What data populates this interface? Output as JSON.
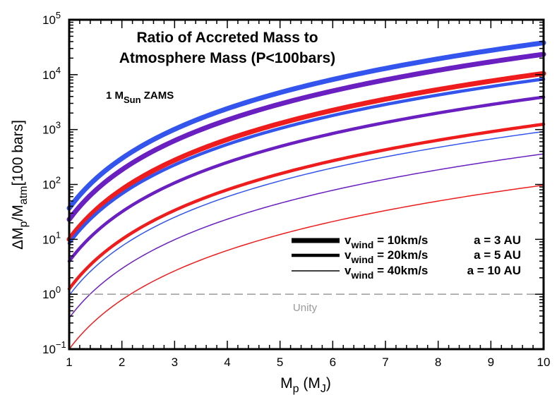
{
  "chart_data": {
    "type": "line",
    "title_line1": "Ratio of Accreted Mass to",
    "title_line2": "Atmosphere Mass (P<100bars)",
    "note": {
      "main": "1 M",
      "sub": "Sun",
      "tail": " ZAMS"
    },
    "xlabel": {
      "main": "M",
      "sub": "p",
      "mid": " (M",
      "sub2": "J",
      "tail": ")"
    },
    "ylabel": {
      "delta": "ΔM",
      "sub1": "p",
      "slash": "/M",
      "sub2": "atm",
      "tail": "[100 bars]"
    },
    "xlim": [
      1,
      10
    ],
    "ylim_log10": [
      -1,
      5
    ],
    "yscale": "log",
    "x_ticks": [
      "1",
      "2",
      "3",
      "4",
      "5",
      "6",
      "7",
      "8",
      "9",
      "10"
    ],
    "y_ticks": [
      {
        "base": "10",
        "exp": "−1"
      },
      {
        "base": "10",
        "exp": "0"
      },
      {
        "base": "10",
        "exp": "1"
      },
      {
        "base": "10",
        "exp": "2"
      },
      {
        "base": "10",
        "exp": "3"
      },
      {
        "base": "10",
        "exp": "4"
      },
      {
        "base": "10",
        "exp": "5"
      }
    ],
    "series": [
      {
        "name": "a = 3 AU, v_wind = 10km/s",
        "color": "#3355ee",
        "weight": "thick",
        "y_at_1": 37,
        "y_at_10": 38000
      },
      {
        "name": "a = 5 AU, v_wind = 10km/s",
        "color": "#6a1fc0",
        "weight": "thick",
        "y_at_1": 23,
        "y_at_10": 23500
      },
      {
        "name": "a = 10 AU, v_wind = 10km/s",
        "color": "#ee1c1c",
        "weight": "thick",
        "y_at_1": 10,
        "y_at_10": 10500
      },
      {
        "name": "a = 3 AU, v_wind = 20km/s",
        "color": "#3355ee",
        "weight": "medium",
        "y_at_1": 8.5,
        "y_at_10": 8300
      },
      {
        "name": "a = 5 AU, v_wind = 20km/s",
        "color": "#6a1fc0",
        "weight": "medium",
        "y_at_1": 4,
        "y_at_10": 3900
      },
      {
        "name": "a = 10 AU, v_wind = 20km/s",
        "color": "#ee1c1c",
        "weight": "medium",
        "y_at_1": 1.25,
        "y_at_10": 1250
      },
      {
        "name": "a = 3 AU, v_wind = 40km/s",
        "color": "#3355ee",
        "weight": "thin",
        "y_at_1": 0.95,
        "y_at_10": 920
      },
      {
        "name": "a = 5 AU, v_wind = 40km/s",
        "color": "#6a1fc0",
        "weight": "thin",
        "y_at_1": 0.37,
        "y_at_10": 360
      },
      {
        "name": "a = 10 AU, v_wind = 40km/s",
        "color": "#ee1c1c",
        "weight": "thin",
        "y_at_1": 0.1,
        "y_at_10": 97
      }
    ],
    "unity_line": {
      "y": 1,
      "label": "Unity",
      "color": "#999999"
    },
    "legend": {
      "placement": "lower-right",
      "speed_entries": [
        {
          "v": "v",
          "sub": "wind",
          "text": " = 10km/s",
          "weight": "thick"
        },
        {
          "v": "v",
          "sub": "wind",
          "text": " = 20km/s",
          "weight": "medium"
        },
        {
          "v": "v",
          "sub": "wind",
          "text": " = 40km/s",
          "weight": "thin"
        }
      ],
      "distance_entries": [
        {
          "text": "a = 3 AU",
          "color": "#3355ee"
        },
        {
          "text": "a = 5 AU",
          "color": "#6a1fc0"
        },
        {
          "text": "a = 10 AU",
          "color": "#ee1c1c"
        }
      ]
    }
  }
}
